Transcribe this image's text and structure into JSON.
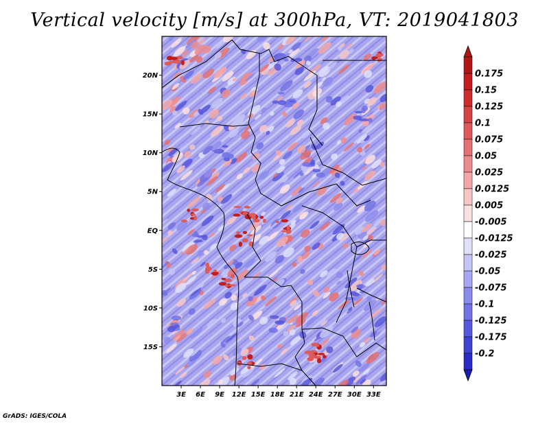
{
  "chart_data": {
    "type": "heatmap",
    "title": "Vertical velocity [m/s] at 300hPa, VT: 2019041803",
    "variable": "Vertical velocity",
    "units": "m/s",
    "level": "300hPa",
    "valid_time": "2019041803",
    "xlabel": "",
    "ylabel": "",
    "lon_range": [
      0,
      35
    ],
    "lat_range": [
      -20,
      25
    ],
    "x_ticks": [
      {
        "value": 3,
        "label": "3E"
      },
      {
        "value": 6,
        "label": "6E"
      },
      {
        "value": 9,
        "label": "9E"
      },
      {
        "value": 12,
        "label": "12E"
      },
      {
        "value": 15,
        "label": "15E"
      },
      {
        "value": 18,
        "label": "18E"
      },
      {
        "value": 21,
        "label": "21E"
      },
      {
        "value": 24,
        "label": "24E"
      },
      {
        "value": 27,
        "label": "27E"
      },
      {
        "value": 30,
        "label": "30E"
      },
      {
        "value": 33,
        "label": "33E"
      }
    ],
    "y_ticks": [
      {
        "value": 20,
        "label": "20N"
      },
      {
        "value": 15,
        "label": "15N"
      },
      {
        "value": 10,
        "label": "10N"
      },
      {
        "value": 5,
        "label": "5N"
      },
      {
        "value": 0,
        "label": "EQ"
      },
      {
        "value": -5,
        "label": "5S"
      },
      {
        "value": -10,
        "label": "10S"
      },
      {
        "value": -15,
        "label": "15S"
      }
    ],
    "colorbar": {
      "levels": [
        {
          "label": "0.175",
          "value": 0.175,
          "color": "#c21e1e"
        },
        {
          "label": "0.15",
          "value": 0.15,
          "color": "#cc2e2e"
        },
        {
          "label": "0.125",
          "value": 0.125,
          "color": "#d44444"
        },
        {
          "label": "0.1",
          "value": 0.1,
          "color": "#dc5a5a"
        },
        {
          "label": "0.075",
          "value": 0.075,
          "color": "#e47272"
        },
        {
          "label": "0.05",
          "value": 0.05,
          "color": "#ec8c8c"
        },
        {
          "label": "0.025",
          "value": 0.025,
          "color": "#f2a8a8"
        },
        {
          "label": "0.0125",
          "value": 0.0125,
          "color": "#f7c6c6"
        },
        {
          "label": "0.005",
          "value": 0.005,
          "color": "#fbe2e2"
        },
        {
          "label": "-0.005",
          "value": -0.005,
          "color": "#ffffff"
        },
        {
          "label": "-0.0125",
          "value": -0.0125,
          "color": "#e0e0fb"
        },
        {
          "label": "-0.025",
          "value": -0.025,
          "color": "#c4c4f7"
        },
        {
          "label": "-0.05",
          "value": -0.05,
          "color": "#a8a8f2"
        },
        {
          "label": "-0.075",
          "value": -0.075,
          "color": "#8c8cec"
        },
        {
          "label": "-0.1",
          "value": -0.1,
          "color": "#7272e4"
        },
        {
          "label": "-0.125",
          "value": -0.125,
          "color": "#5858dc"
        },
        {
          "label": "-0.175",
          "value": -0.175,
          "color": "#4242d2"
        },
        {
          "label": "-0.2",
          "value": -0.2,
          "color": "#2c2cc4"
        }
      ],
      "top_color": "#b01818",
      "bottom_color": "#1c1cb2"
    }
  },
  "credit": "GrADS: IGES/COLA",
  "colors": {
    "axis": "#000000",
    "background": "#ffffff"
  }
}
